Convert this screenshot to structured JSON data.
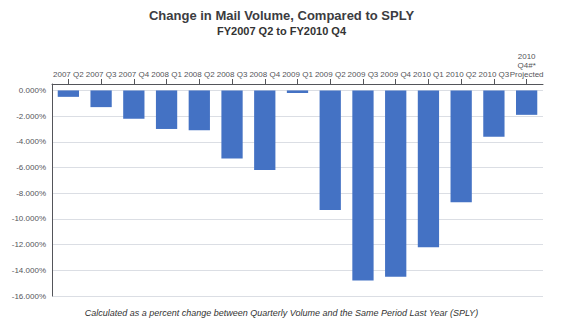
{
  "chart_data": {
    "type": "bar",
    "title": "Change in Mail Volume, Compared to SPLY",
    "subtitle": "FY2007 Q2 to FY2010 Q4",
    "annotations": [
      "Calculated as a percent change between Quarterly Volume and the Same Period Last Year (SPLY)"
    ],
    "categories": [
      "2007 Q2",
      "2007 Q3",
      "2007 Q4",
      "2008 Q1",
      "2008 Q2",
      "2008 Q3",
      "2008 Q4",
      "2009 Q1",
      "2009 Q2",
      "2009 Q3",
      "2009 Q4",
      "2010 Q1",
      "2010 Q2",
      "2010 Q3",
      "2010\nQ4#*\nProjected"
    ],
    "values": [
      -0.005,
      -0.013,
      -0.022,
      -0.03,
      -0.031,
      -0.053,
      -0.062,
      -0.002,
      -0.093,
      -0.148,
      -0.145,
      -0.122,
      -0.087,
      -0.036,
      -0.019
    ],
    "color": "#4472C4",
    "ylim": [
      -0.16,
      0.005
    ],
    "yticks": [
      {
        "value": 0.0,
        "label": "0.000%"
      },
      {
        "value": -0.02,
        "label": "-2.000%"
      },
      {
        "value": -0.04,
        "label": "-4.000%"
      },
      {
        "value": -0.06,
        "label": "-6.000%"
      },
      {
        "value": -0.08,
        "label": "-8.000%"
      },
      {
        "value": -0.1,
        "label": "-10.000%"
      },
      {
        "value": -0.12,
        "label": "-12.000%"
      },
      {
        "value": -0.14,
        "label": "-14.000%"
      },
      {
        "value": -0.16,
        "label": "-16.000%"
      }
    ],
    "grid": true
  }
}
